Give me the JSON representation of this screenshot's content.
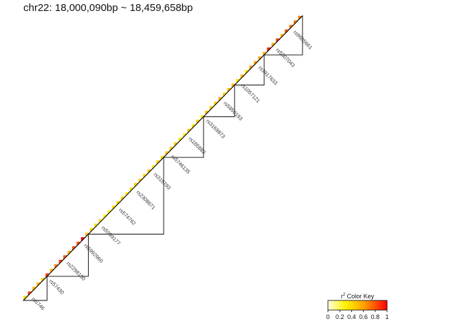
{
  "chart_data": {
    "type": "heatmap",
    "title": "chr22: 18,000,090bp ~ 18,459,658bp",
    "measure": "r2",
    "layout": "upper-triangle LD matrix, diagonal running from bottom-left to top-right",
    "color_scale": {
      "low": "#ffffe0",
      "mid": "#ffd700",
      "high": "#ff0000"
    },
    "legend": {
      "title_sup": "2",
      "title_main": "r",
      "title_rest": " Color Key",
      "ticks": [
        "0",
        "0.2",
        "0.4",
        "0.6",
        "0.8",
        "1"
      ],
      "placement": "bottom-right"
    },
    "blocks": [
      {
        "from_snp": 0,
        "to_snp": 16,
        "level": 0.75
      },
      {
        "from_snp": 16,
        "to_snp": 44,
        "level": 0.9
      },
      {
        "from_snp": 44,
        "to_snp": 95,
        "level": 0.45
      },
      {
        "from_snp": 95,
        "to_snp": 122,
        "level": 0.55
      },
      {
        "from_snp": 122,
        "to_snp": 143,
        "level": 0.5
      },
      {
        "from_snp": 143,
        "to_snp": 163,
        "level": 0.55
      },
      {
        "from_snp": 163,
        "to_snp": 189,
        "level": 0.85
      }
    ],
    "n_snps": 189,
    "snp_labels": [
      "rs5746",
      "rs57430",
      "rs2298180",
      "rs5992960",
      "rs5999177",
      "rs574762",
      "rs2308671",
      "rs316293",
      "rs5746135",
      "rs165883",
      "rs3169873",
      "rs5850193",
      "rs1057121",
      "rs3917633",
      "rs5807043",
      "rs9605661"
    ]
  }
}
